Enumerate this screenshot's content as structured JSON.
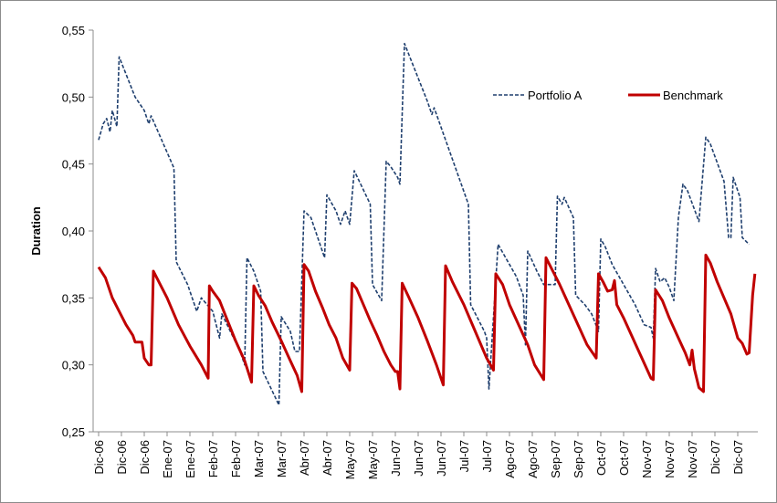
{
  "chart_data": {
    "type": "line",
    "ylabel": "Duration",
    "xlabel": "",
    "ylim": [
      0.25,
      0.55
    ],
    "y_ticks": [
      "0,25",
      "0,30",
      "0,35",
      "0,40",
      "0,45",
      "0,50",
      "0,55"
    ],
    "grid": false,
    "legend_position": "top-right",
    "x_ticks": [
      "Dic-06",
      "Dic-06",
      "Dic-06",
      "Ene-07",
      "Ene-07",
      "Feb-07",
      "Feb-07",
      "Mar-07",
      "Mar-07",
      "Abr-07",
      "Abr-07",
      "May-07",
      "May-07",
      "Jun-07",
      "Jun-07",
      "Jun-07",
      "Jul-07",
      "Jul-07",
      "Ago-07",
      "Ago-07",
      "Sep-07",
      "Sep-07",
      "Oct-07",
      "Oct-07",
      "Nov-07",
      "Nov-07",
      "Nov-07",
      "Dic-07",
      "Dic-07"
    ],
    "x": [
      0,
      1,
      2,
      3,
      4,
      5,
      6,
      7,
      8,
      9,
      10,
      11,
      12,
      13,
      14,
      15,
      16,
      17,
      18,
      19,
      20,
      21,
      22,
      23,
      24,
      25,
      26,
      27,
      28
    ],
    "series": [
      {
        "name": "Portfolio A",
        "color": "#1f3f6e",
        "style": "dashed",
        "points": [
          [
            0,
            0.468
          ],
          [
            0.2,
            0.48
          ],
          [
            0.35,
            0.484
          ],
          [
            0.5,
            0.474
          ],
          [
            0.6,
            0.49
          ],
          [
            0.8,
            0.478
          ],
          [
            0.9,
            0.53
          ],
          [
            1.6,
            0.5
          ],
          [
            2.0,
            0.49
          ],
          [
            2.2,
            0.48
          ],
          [
            2.3,
            0.486
          ],
          [
            3.3,
            0.447
          ],
          [
            3.4,
            0.377
          ],
          [
            3.9,
            0.36
          ],
          [
            4.3,
            0.34
          ],
          [
            4.5,
            0.35
          ],
          [
            5.0,
            0.34
          ],
          [
            5.3,
            0.32
          ],
          [
            5.4,
            0.338
          ],
          [
            6.0,
            0.317
          ],
          [
            6.2,
            0.31
          ],
          [
            6.4,
            0.3
          ],
          [
            6.5,
            0.38
          ],
          [
            6.8,
            0.37
          ],
          [
            7.1,
            0.355
          ],
          [
            7.2,
            0.295
          ],
          [
            7.9,
            0.27
          ],
          [
            8.0,
            0.336
          ],
          [
            8.4,
            0.325
          ],
          [
            8.6,
            0.31
          ],
          [
            8.8,
            0.31
          ],
          [
            9.0,
            0.415
          ],
          [
            9.3,
            0.41
          ],
          [
            9.9,
            0.38
          ],
          [
            10.0,
            0.427
          ],
          [
            10.4,
            0.415
          ],
          [
            10.6,
            0.405
          ],
          [
            10.8,
            0.415
          ],
          [
            11.0,
            0.405
          ],
          [
            11.2,
            0.445
          ],
          [
            11.9,
            0.42
          ],
          [
            12.0,
            0.36
          ],
          [
            12.4,
            0.348
          ],
          [
            12.6,
            0.452
          ],
          [
            12.8,
            0.448
          ],
          [
            13.1,
            0.44
          ],
          [
            13.2,
            0.435
          ],
          [
            13.4,
            0.54
          ],
          [
            14.4,
            0.497
          ],
          [
            14.6,
            0.487
          ],
          [
            14.7,
            0.492
          ],
          [
            16.2,
            0.42
          ],
          [
            16.3,
            0.345
          ],
          [
            16.6,
            0.335
          ],
          [
            16.9,
            0.325
          ],
          [
            17.0,
            0.32
          ],
          [
            17.1,
            0.282
          ],
          [
            17.5,
            0.39
          ],
          [
            18.0,
            0.375
          ],
          [
            18.3,
            0.366
          ],
          [
            18.6,
            0.352
          ],
          [
            18.7,
            0.315
          ],
          [
            18.8,
            0.385
          ],
          [
            19.2,
            0.37
          ],
          [
            19.5,
            0.36
          ],
          [
            20.0,
            0.36
          ],
          [
            20.1,
            0.426
          ],
          [
            20.3,
            0.42
          ],
          [
            20.4,
            0.425
          ],
          [
            20.8,
            0.41
          ],
          [
            20.9,
            0.352
          ],
          [
            21.3,
            0.345
          ],
          [
            21.6,
            0.338
          ],
          [
            21.9,
            0.325
          ],
          [
            22.0,
            0.394
          ],
          [
            22.2,
            0.388
          ],
          [
            22.5,
            0.375
          ],
          [
            23.0,
            0.36
          ],
          [
            23.5,
            0.345
          ],
          [
            23.9,
            0.33
          ],
          [
            24.2,
            0.328
          ],
          [
            24.3,
            0.32
          ],
          [
            24.4,
            0.372
          ],
          [
            24.6,
            0.362
          ],
          [
            24.8,
            0.365
          ],
          [
            25.0,
            0.358
          ],
          [
            25.2,
            0.348
          ],
          [
            25.4,
            0.41
          ],
          [
            25.6,
            0.435
          ],
          [
            25.8,
            0.43
          ],
          [
            26.3,
            0.407
          ],
          [
            26.6,
            0.47
          ],
          [
            26.8,
            0.465
          ],
          [
            27.4,
            0.437
          ],
          [
            27.6,
            0.395
          ],
          [
            27.7,
            0.395
          ],
          [
            27.8,
            0.44
          ],
          [
            28.1,
            0.425
          ],
          [
            28.2,
            0.395
          ],
          [
            28.5,
            0.39
          ]
        ]
      },
      {
        "name": "Benchmark",
        "color": "#c00000",
        "style": "solid",
        "points": [
          [
            0,
            0.373
          ],
          [
            0.3,
            0.365
          ],
          [
            0.6,
            0.35
          ],
          [
            0.9,
            0.34
          ],
          [
            1.2,
            0.33
          ],
          [
            1.5,
            0.322
          ],
          [
            1.6,
            0.317
          ],
          [
            1.9,
            0.317
          ],
          [
            2.0,
            0.305
          ],
          [
            2.2,
            0.3
          ],
          [
            2.3,
            0.3
          ],
          [
            2.4,
            0.37
          ],
          [
            2.7,
            0.36
          ],
          [
            3.0,
            0.35
          ],
          [
            3.5,
            0.33
          ],
          [
            4.0,
            0.314
          ],
          [
            4.5,
            0.3
          ],
          [
            4.8,
            0.29
          ],
          [
            4.85,
            0.359
          ],
          [
            5.0,
            0.355
          ],
          [
            5.3,
            0.348
          ],
          [
            5.6,
            0.335
          ],
          [
            6.0,
            0.318
          ],
          [
            6.4,
            0.303
          ],
          [
            6.7,
            0.287
          ],
          [
            6.8,
            0.359
          ],
          [
            7.0,
            0.352
          ],
          [
            7.3,
            0.344
          ],
          [
            7.6,
            0.332
          ],
          [
            8.0,
            0.318
          ],
          [
            8.4,
            0.303
          ],
          [
            8.7,
            0.292
          ],
          [
            8.9,
            0.28
          ],
          [
            9.0,
            0.375
          ],
          [
            9.2,
            0.37
          ],
          [
            9.5,
            0.355
          ],
          [
            9.8,
            0.343
          ],
          [
            10.1,
            0.33
          ],
          [
            10.4,
            0.32
          ],
          [
            10.7,
            0.305
          ],
          [
            11.0,
            0.296
          ],
          [
            11.1,
            0.361
          ],
          [
            11.3,
            0.357
          ],
          [
            11.6,
            0.345
          ],
          [
            11.9,
            0.333
          ],
          [
            12.2,
            0.322
          ],
          [
            12.5,
            0.31
          ],
          [
            12.8,
            0.3
          ],
          [
            13.0,
            0.295
          ],
          [
            13.1,
            0.295
          ],
          [
            13.2,
            0.282
          ],
          [
            13.3,
            0.361
          ],
          [
            13.6,
            0.35
          ],
          [
            14.0,
            0.335
          ],
          [
            14.4,
            0.318
          ],
          [
            14.8,
            0.3
          ],
          [
            15.1,
            0.285
          ],
          [
            15.2,
            0.374
          ],
          [
            15.5,
            0.362
          ],
          [
            16.0,
            0.345
          ],
          [
            16.5,
            0.325
          ],
          [
            17.0,
            0.305
          ],
          [
            17.3,
            0.296
          ],
          [
            17.4,
            0.368
          ],
          [
            17.7,
            0.36
          ],
          [
            18.0,
            0.345
          ],
          [
            18.4,
            0.33
          ],
          [
            18.8,
            0.315
          ],
          [
            19.1,
            0.3
          ],
          [
            19.5,
            0.289
          ],
          [
            19.6,
            0.38
          ],
          [
            19.9,
            0.37
          ],
          [
            20.2,
            0.36
          ],
          [
            20.6,
            0.345
          ],
          [
            21.0,
            0.33
          ],
          [
            21.4,
            0.315
          ],
          [
            21.8,
            0.305
          ],
          [
            21.9,
            0.368
          ],
          [
            22.1,
            0.362
          ],
          [
            22.3,
            0.355
          ],
          [
            22.5,
            0.356
          ],
          [
            22.6,
            0.363
          ],
          [
            22.7,
            0.345
          ],
          [
            23.0,
            0.335
          ],
          [
            23.4,
            0.32
          ],
          [
            23.8,
            0.305
          ],
          [
            24.2,
            0.29
          ],
          [
            24.3,
            0.289
          ],
          [
            24.4,
            0.356
          ],
          [
            24.7,
            0.348
          ],
          [
            25.0,
            0.335
          ],
          [
            25.4,
            0.32
          ],
          [
            25.7,
            0.309
          ],
          [
            25.9,
            0.3
          ],
          [
            26.0,
            0.311
          ],
          [
            26.1,
            0.297
          ],
          [
            26.3,
            0.283
          ],
          [
            26.5,
            0.28
          ],
          [
            26.6,
            0.382
          ],
          [
            26.8,
            0.376
          ],
          [
            27.1,
            0.362
          ],
          [
            27.4,
            0.35
          ],
          [
            27.7,
            0.338
          ],
          [
            28.0,
            0.32
          ],
          [
            28.2,
            0.316
          ],
          [
            28.4,
            0.308
          ],
          [
            28.5,
            0.309
          ],
          [
            28.65,
            0.352
          ],
          [
            28.75,
            0.368
          ]
        ]
      }
    ]
  }
}
